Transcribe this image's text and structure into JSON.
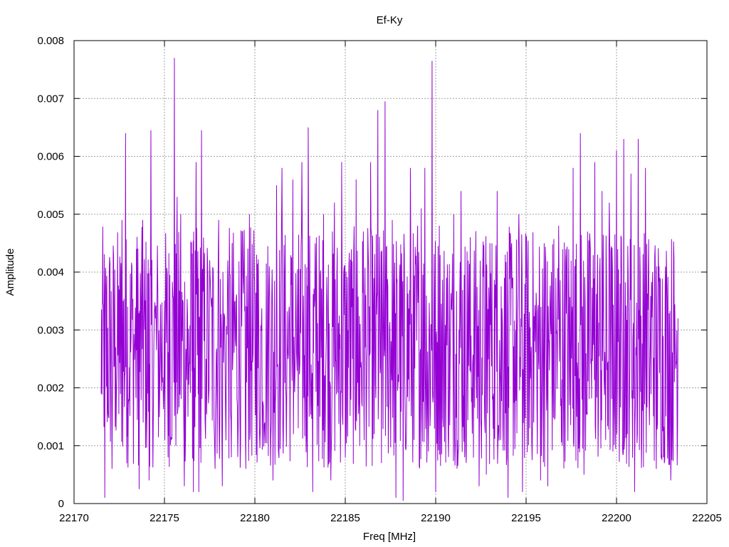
{
  "chart_data": {
    "type": "line",
    "title": "Ef-Ky",
    "xlabel": "Freq [MHz]",
    "ylabel": "Amplitude",
    "xlim": [
      22170,
      22205
    ],
    "ylim": [
      0,
      0.008
    ],
    "x_ticks": [
      "22170",
      "22175",
      "22180",
      "22185",
      "22190",
      "22195",
      "22200",
      "22205"
    ],
    "y_ticks": [
      "0",
      "0.001",
      "0.002",
      "0.003",
      "0.004",
      "0.005",
      "0.006",
      "0.007",
      "0.008"
    ],
    "grid": true,
    "series": [
      {
        "color": "#9400d3",
        "x_start": 22171.5,
        "x_end": 22203.5,
        "points": [
          [
            22171.5,
            0.0019
          ],
          [
            22171.7,
            0.0001
          ],
          [
            22171.9,
            0.0015
          ],
          [
            22172.1,
            0.0006
          ],
          [
            22172.3,
            0.0027
          ],
          [
            22172.5,
            0.0037
          ],
          [
            22172.65,
            0.0049
          ],
          [
            22172.85,
            0.0064
          ],
          [
            22173.0,
            0.0017
          ],
          [
            22173.2,
            0.0041
          ],
          [
            22173.45,
            0.0044
          ],
          [
            22173.6,
            0.00025
          ],
          [
            22173.8,
            0.0049
          ],
          [
            22174.0,
            0.0015
          ],
          [
            22174.15,
            0.0004
          ],
          [
            22174.25,
            0.00645
          ],
          [
            22174.5,
            0.0032
          ],
          [
            22174.75,
            0.0023
          ],
          [
            22175.0,
            0.0035
          ],
          [
            22175.2,
            0.0008
          ],
          [
            22175.3,
            0.00395
          ],
          [
            22175.55,
            0.0077
          ],
          [
            22175.7,
            0.0053
          ],
          [
            22175.9,
            0.005
          ],
          [
            22176.1,
            0.0003
          ],
          [
            22176.3,
            0.0015
          ],
          [
            22176.5,
            0.0045
          ],
          [
            22176.6,
            0.0002
          ],
          [
            22176.75,
            0.0059
          ],
          [
            22176.9,
            0.0002
          ],
          [
            22177.05,
            0.00645
          ],
          [
            22177.3,
            0.0025
          ],
          [
            22177.6,
            0.0034
          ],
          [
            22177.8,
            0.0006
          ],
          [
            22178.0,
            0.0049
          ],
          [
            22178.2,
            0.0003
          ],
          [
            22178.5,
            0.0042
          ],
          [
            22178.7,
            0.0008
          ],
          [
            22178.9,
            0.0035
          ],
          [
            22179.1,
            0.0019
          ],
          [
            22179.3,
            0.0047
          ],
          [
            22179.5,
            0.0006
          ],
          [
            22179.7,
            0.005
          ],
          [
            22179.9,
            0.0026
          ],
          [
            22180.1,
            0.0043
          ],
          [
            22180.3,
            0.0013
          ],
          [
            22180.55,
            0.0014
          ],
          [
            22180.8,
            0.0041
          ],
          [
            22181.0,
            0.0004
          ],
          [
            22181.2,
            0.0055
          ],
          [
            22181.5,
            0.0058
          ],
          [
            22181.7,
            0.002
          ],
          [
            22181.9,
            0.0034
          ],
          [
            22182.1,
            0.0056
          ],
          [
            22182.4,
            0.0013
          ],
          [
            22182.6,
            0.0059
          ],
          [
            22182.8,
            0.0019
          ],
          [
            22182.95,
            0.0065
          ],
          [
            22183.2,
            0.0002
          ],
          [
            22183.4,
            0.0046
          ],
          [
            22183.6,
            0.0015
          ],
          [
            22183.8,
            0.005
          ],
          [
            22184.0,
            0.0035
          ],
          [
            22184.2,
            0.0004
          ],
          [
            22184.4,
            0.0052
          ],
          [
            22184.6,
            0.0025
          ],
          [
            22184.8,
            0.0059
          ],
          [
            22185.0,
            0.0008
          ],
          [
            22185.2,
            0.0041
          ],
          [
            22185.4,
            0.0025
          ],
          [
            22185.6,
            0.0056
          ],
          [
            22185.8,
            0.001
          ],
          [
            22186.0,
            0.0047
          ],
          [
            22186.2,
            0.0025
          ],
          [
            22186.4,
            0.0059
          ],
          [
            22186.6,
            0.0012
          ],
          [
            22186.8,
            0.0068
          ],
          [
            22187.0,
            0.0007
          ],
          [
            22187.2,
            0.00695
          ],
          [
            22187.4,
            0.0016
          ],
          [
            22187.6,
            0.0049
          ],
          [
            22187.8,
            0.0001
          ],
          [
            22188.0,
            0.0039
          ],
          [
            22188.2,
            5e-05
          ],
          [
            22188.4,
            0.002
          ],
          [
            22188.6,
            0.0058
          ],
          [
            22188.8,
            0.0011
          ],
          [
            22189.0,
            0.0048
          ],
          [
            22189.2,
            0.0051
          ],
          [
            22189.4,
            0.0058
          ],
          [
            22189.6,
            0.0009
          ],
          [
            22189.8,
            0.00765
          ],
          [
            22190.0,
            0.0002
          ],
          [
            22190.2,
            0.0048
          ],
          [
            22190.4,
            0.0015
          ],
          [
            22190.6,
            0.0039
          ],
          [
            22190.8,
            0.0025
          ],
          [
            22191.0,
            0.005
          ],
          [
            22191.2,
            0.0011
          ],
          [
            22191.4,
            0.0054
          ],
          [
            22191.6,
            0.0008
          ],
          [
            22191.8,
            0.0042
          ],
          [
            22192.0,
            0.002
          ],
          [
            22192.2,
            0.0038
          ],
          [
            22192.4,
            0.0003
          ],
          [
            22192.6,
            0.004
          ],
          [
            22192.8,
            0.0005
          ],
          [
            22193.0,
            0.0045
          ],
          [
            22193.2,
            0.0019
          ],
          [
            22193.4,
            0.0054
          ],
          [
            22193.6,
            0.0011
          ],
          [
            22193.8,
            0.0039
          ],
          [
            22194.0,
            0.0001
          ],
          [
            22194.2,
            0.0045
          ],
          [
            22194.4,
            0.0019
          ],
          [
            22194.6,
            0.005
          ],
          [
            22194.8,
            0.0002
          ],
          [
            22195.0,
            0.0039
          ],
          [
            22195.2,
            0.0013
          ],
          [
            22195.4,
            0.0033
          ],
          [
            22195.6,
            0.0017
          ],
          [
            22195.8,
            0.0004
          ],
          [
            22196.0,
            0.0045
          ],
          [
            22196.2,
            0.0003
          ],
          [
            22196.4,
            0.004
          ],
          [
            22196.6,
            0.0015
          ],
          [
            22196.8,
            0.0048
          ],
          [
            22197.0,
            0.001
          ],
          [
            22197.2,
            0.0044
          ],
          [
            22197.4,
            0.0017
          ],
          [
            22197.6,
            0.0058
          ],
          [
            22197.8,
            0.0015
          ],
          [
            22198.0,
            0.0064
          ],
          [
            22198.2,
            0.0005
          ],
          [
            22198.4,
            0.0047
          ],
          [
            22198.6,
            0.0025
          ],
          [
            22198.8,
            0.0059
          ],
          [
            22199.0,
            0.0015
          ],
          [
            22199.2,
            0.0054
          ],
          [
            22199.4,
            0.0011
          ],
          [
            22199.6,
            0.0052
          ],
          [
            22199.8,
            0.0009
          ],
          [
            22200.0,
            0.0061
          ],
          [
            22200.2,
            0.0038
          ],
          [
            22200.4,
            0.0063
          ],
          [
            22200.6,
            0.0012
          ],
          [
            22200.8,
            0.0057
          ],
          [
            22201.0,
            0.0002
          ],
          [
            22201.2,
            0.0063
          ],
          [
            22201.4,
            0.0011
          ],
          [
            22201.6,
            0.0058
          ],
          [
            22201.8,
            0.0018
          ],
          [
            22202.0,
            0.004
          ],
          [
            22202.2,
            0.0006
          ],
          [
            22202.4,
            0.0039
          ],
          [
            22202.6,
            0.0008
          ],
          [
            22202.8,
            0.0035
          ],
          [
            22203.0,
            0.0004
          ],
          [
            22203.2,
            0.0021
          ],
          [
            22203.4,
            0.0032
          ]
        ]
      }
    ]
  }
}
